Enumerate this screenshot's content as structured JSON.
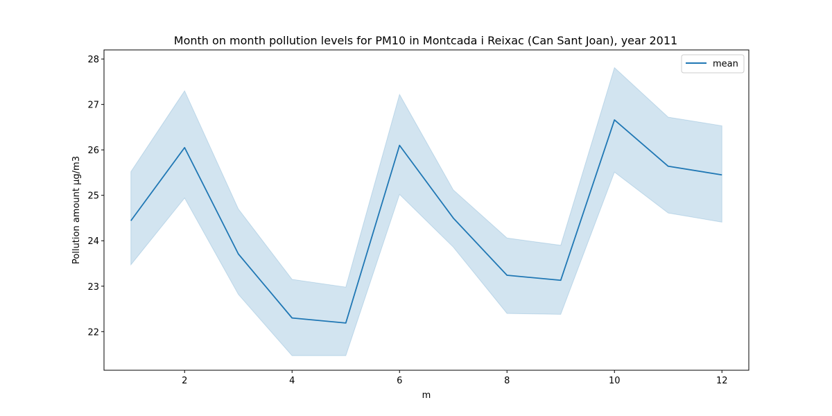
{
  "chart_data": {
    "type": "line",
    "title": "Month on month pollution levels for PM10 in Montcada i Reixac (Can Sant Joan), year 2011",
    "xlabel": "m",
    "ylabel": "Pollution amount µg/m3",
    "x": [
      1,
      2,
      3,
      4,
      5,
      6,
      7,
      8,
      9,
      10,
      11,
      12
    ],
    "xlim": [
      0.5,
      12.5
    ],
    "ylim": [
      21.15,
      28.2
    ],
    "xticks": [
      2,
      4,
      6,
      8,
      10,
      12
    ],
    "yticks": [
      22,
      23,
      24,
      25,
      26,
      27,
      28
    ],
    "grid": false,
    "legend_position": "top-right",
    "series": [
      {
        "name": "mean",
        "color": "#1f77b4",
        "values": [
          24.44,
          26.05,
          23.71,
          22.3,
          22.19,
          26.1,
          24.5,
          23.24,
          23.13,
          26.66,
          25.64,
          25.45
        ],
        "band_lower": [
          23.47,
          24.94,
          22.82,
          21.47,
          21.47,
          25.02,
          23.86,
          22.4,
          22.38,
          25.51,
          24.61,
          24.41
        ],
        "band_upper": [
          25.52,
          27.3,
          24.7,
          23.15,
          22.98,
          27.22,
          25.12,
          24.06,
          23.9,
          27.81,
          26.72,
          26.53
        ],
        "band_color": "#1f77b4"
      }
    ]
  }
}
